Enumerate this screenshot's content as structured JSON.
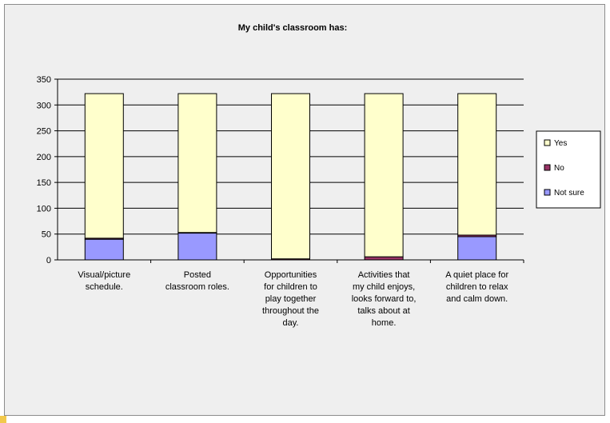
{
  "chart_data": {
    "type": "bar",
    "stacked": true,
    "title": "My child's classroom has:",
    "categories": [
      "Visual/picture schedule.",
      "Posted classroom roles.",
      "Opportunities for children to play together throughout the day.",
      "Activities that my child enjoys, looks forward to, talks about at home.",
      "A quiet place for children to relax and calm down."
    ],
    "category_lines": [
      [
        "Visual/picture",
        "schedule."
      ],
      [
        "Posted",
        "classroom roles."
      ],
      [
        "Opportunities",
        "for children to",
        "play together",
        "throughout the",
        "day."
      ],
      [
        "Activities that",
        "my child enjoys,",
        "looks forward to,",
        "talks about at",
        "home."
      ],
      [
        "A quiet place for",
        "children to relax",
        "and calm down."
      ]
    ],
    "series": [
      {
        "name": "Not sure",
        "values": [
          40,
          52,
          0,
          0,
          45
        ],
        "color": "#9999ff"
      },
      {
        "name": "No",
        "values": [
          2,
          1,
          2,
          6,
          3
        ],
        "color": "#993366"
      },
      {
        "name": "Yes",
        "values": [
          280,
          269,
          320,
          316,
          274
        ],
        "color": "#ffffcc"
      }
    ],
    "legend_order": [
      "Yes",
      "No",
      "Not sure"
    ],
    "yticks": [
      0,
      50,
      100,
      150,
      200,
      250,
      300,
      350
    ],
    "ylim": [
      0,
      350
    ],
    "grid": true,
    "legend_position": "right"
  }
}
